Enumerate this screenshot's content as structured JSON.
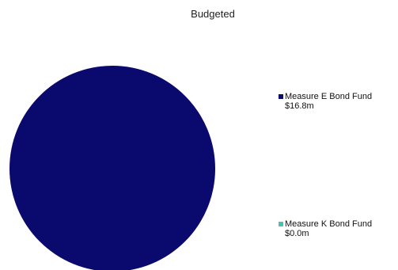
{
  "chart_data": {
    "type": "pie",
    "title": "Budgeted",
    "categories": [
      "Measure E Bond Fund",
      "Measure K Bond Fund"
    ],
    "value_labels": [
      "$16.8m",
      "$0.0m"
    ],
    "values": [
      16.8,
      0.0
    ],
    "units": "$m",
    "colors": [
      "#0a0a6e",
      "#35c9b5"
    ],
    "legend": "right"
  }
}
